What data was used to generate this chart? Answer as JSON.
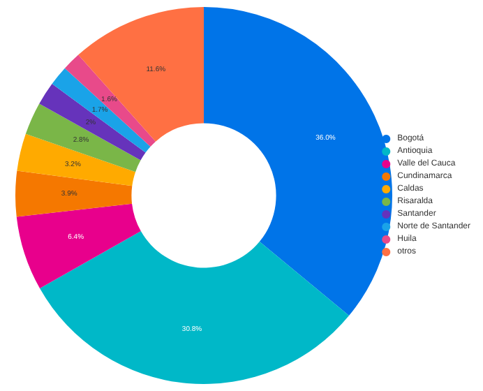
{
  "chart_data": {
    "type": "donut",
    "categories": [
      "Bogotá",
      "Antioquia",
      "Valle del Cauca",
      "Cundinamarca",
      "Caldas",
      "Risaralda",
      "Santander",
      "Norte de Santander",
      "Huila",
      "otros"
    ],
    "values": [
      36.0,
      30.8,
      6.4,
      3.9,
      3.2,
      2.8,
      2,
      1.7,
      1.6,
      11.6
    ],
    "value_labels": [
      "36.0%",
      "30.8%",
      "6.4%",
      "3.9%",
      "3.2%",
      "2.8%",
      "2%",
      "1.7%",
      "1.6%",
      "11.6%"
    ],
    "colors": [
      "#0074e8",
      "#00b8c8",
      "#e8008c",
      "#f57800",
      "#ffaa00",
      "#7ab648",
      "#6633bb",
      "#1aa3e8",
      "#e84a8a",
      "#ff7043"
    ],
    "legend": "right"
  }
}
